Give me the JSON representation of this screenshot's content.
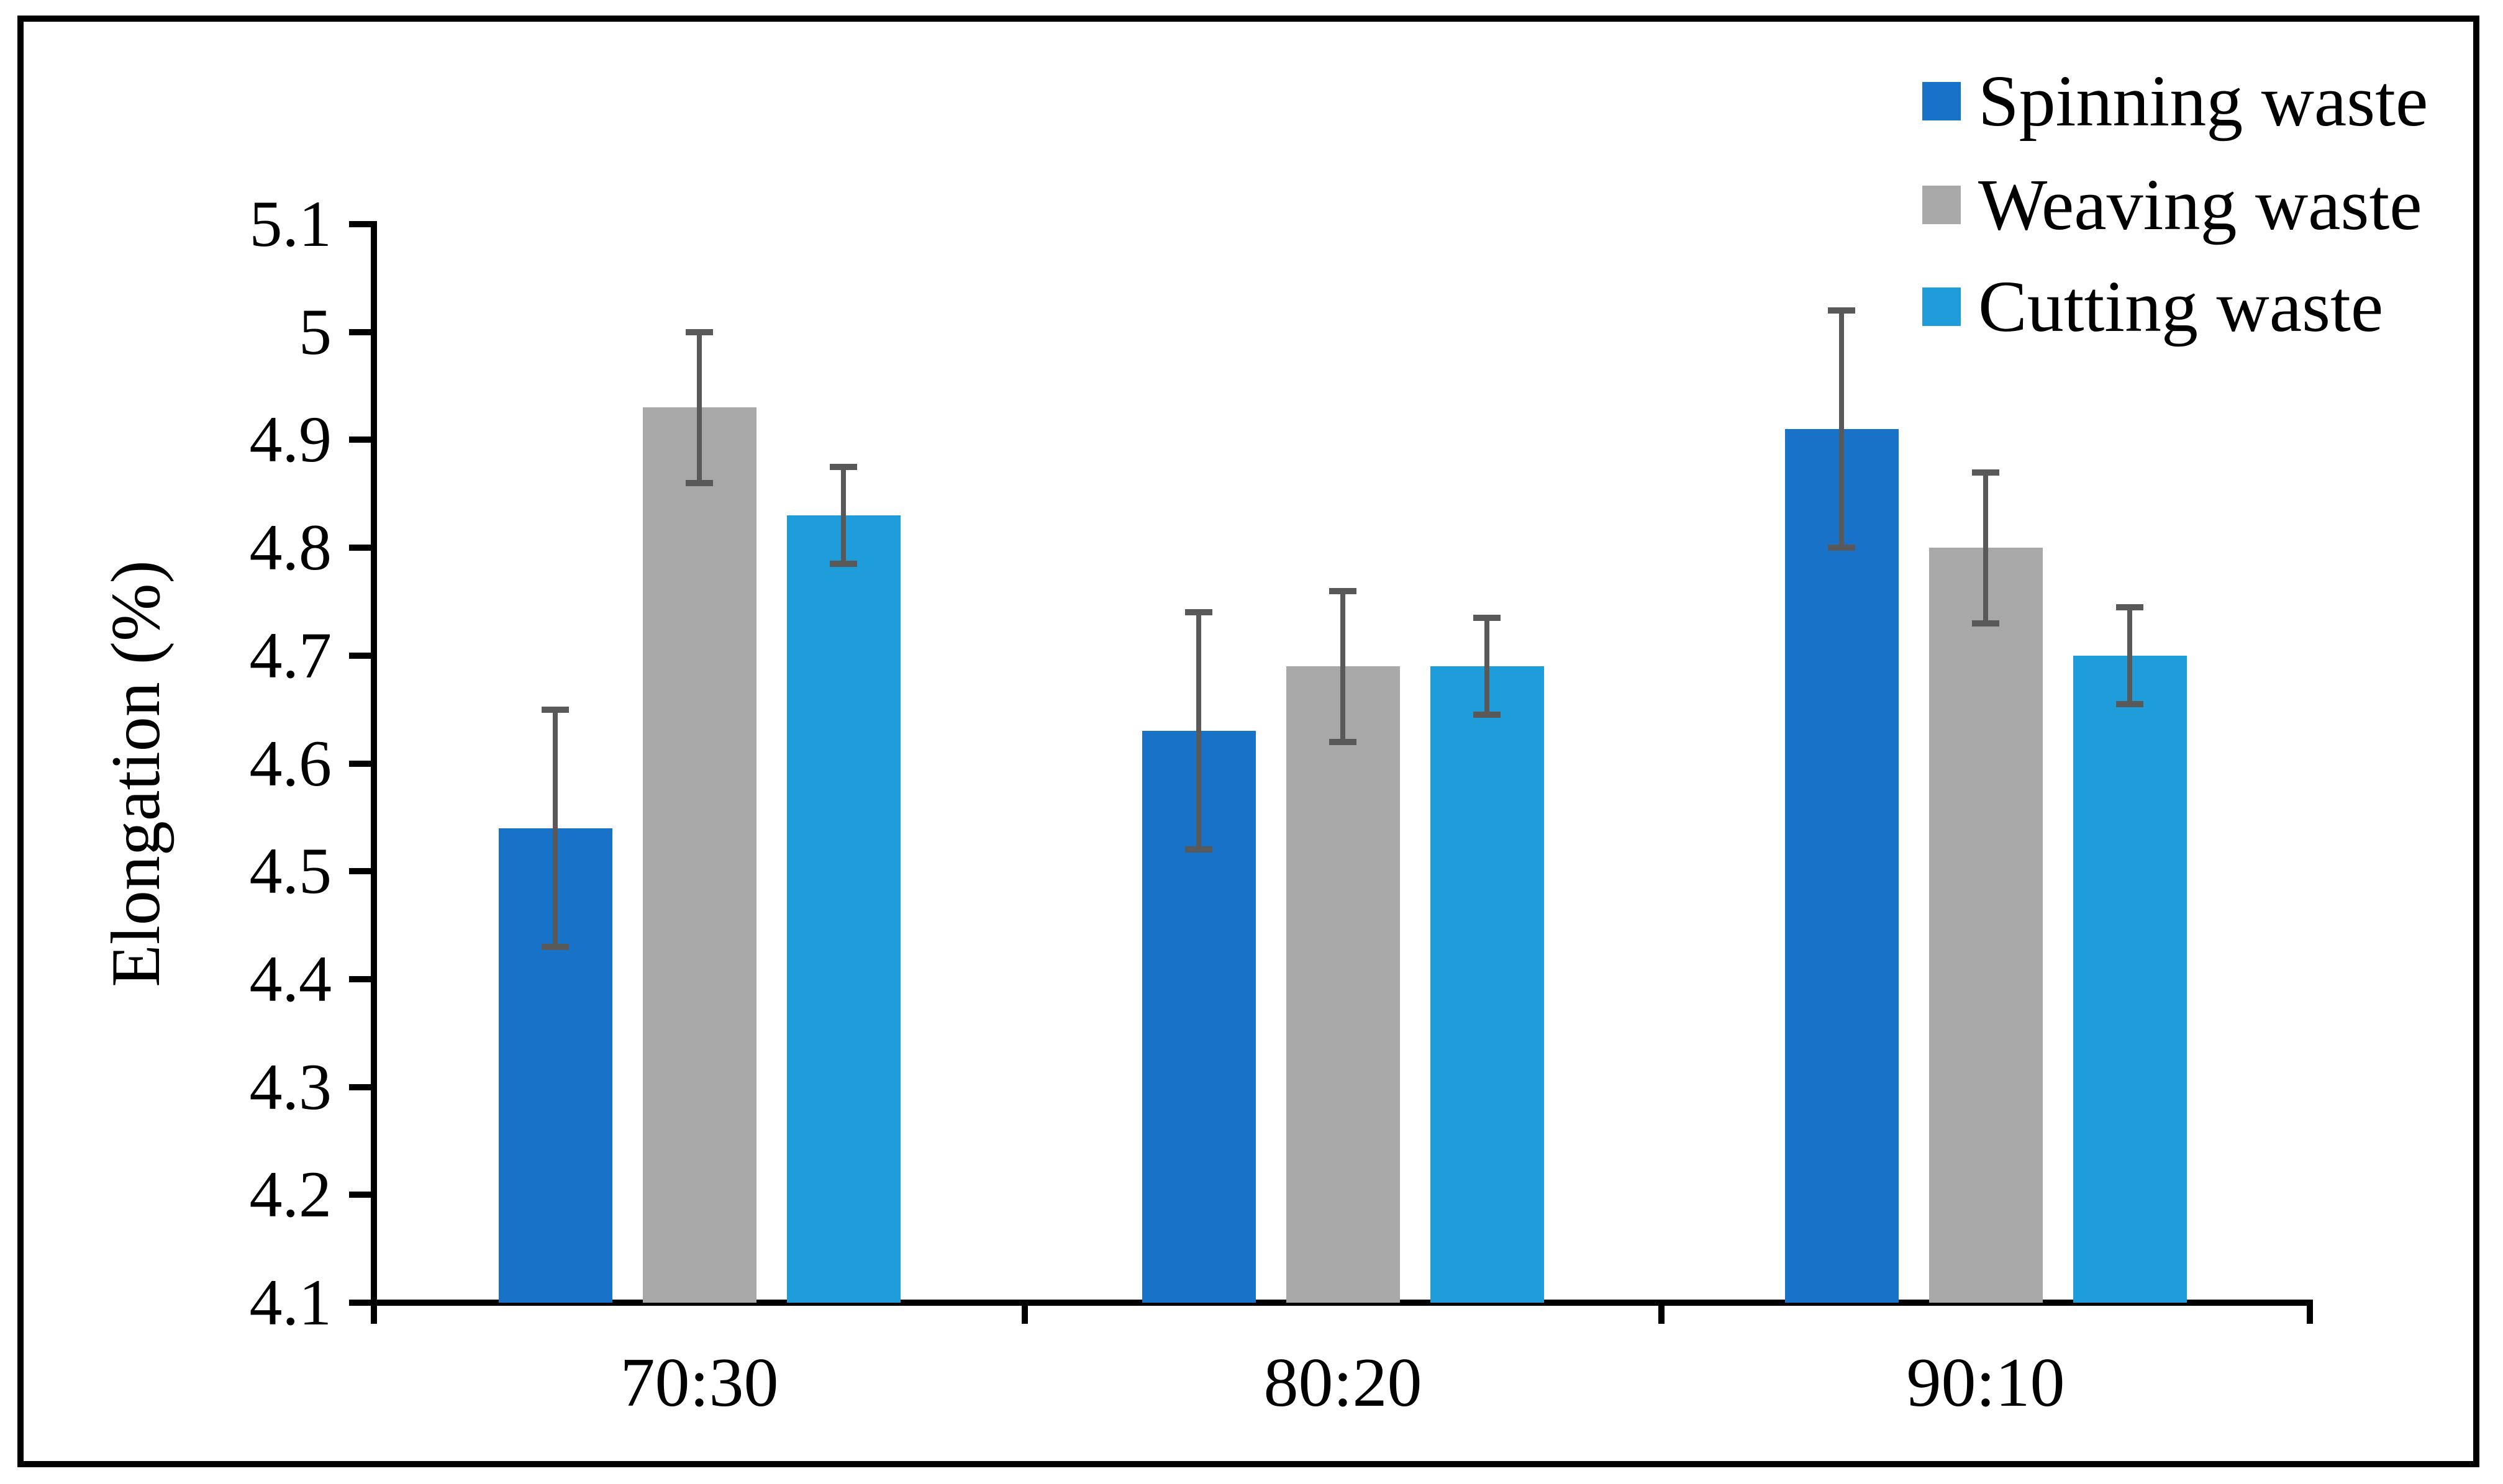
{
  "figure": {
    "y_axis": {
      "title": "Elongation (%)",
      "tick_labels": [
        "4.1",
        "4.2",
        "4.3",
        "4.4",
        "4.5",
        "4.6",
        "4.7",
        "4.8",
        "4.9",
        "5",
        "5.1"
      ]
    },
    "x_axis": {
      "category_labels": [
        "70:30",
        "80:20",
        "90:10"
      ]
    },
    "legend": {
      "items": [
        {
          "label": "Spinning waste",
          "color": "#1772C8"
        },
        {
          "label": "Weaving waste",
          "color": "#A8A8A8"
        },
        {
          "label": "Cutting waste",
          "color": "#1F9CDA"
        }
      ]
    }
  },
  "chart_data": {
    "type": "bar",
    "title": "",
    "xlabel": "",
    "ylabel": "Elongation (%)",
    "categories": [
      "70:30",
      "80:20",
      "90:10"
    ],
    "series": [
      {
        "name": "Spinning waste",
        "color": "#1772C8",
        "values": [
          4.54,
          4.63,
          4.91
        ],
        "errors": [
          0.11,
          0.11,
          0.11
        ]
      },
      {
        "name": "Weaving waste",
        "color": "#A8A8A8",
        "values": [
          4.93,
          4.69,
          4.8
        ],
        "errors": [
          0.07,
          0.07,
          0.07
        ]
      },
      {
        "name": "Cutting waste",
        "color": "#1F9CDA",
        "values": [
          4.83,
          4.69,
          4.7
        ],
        "errors": [
          0.045,
          0.045,
          0.045
        ]
      }
    ],
    "ylim": [
      4.1,
      5.1
    ],
    "ytick_step": 0.1,
    "grid": false,
    "legend_position": "top-right",
    "error_bar_color": "#595959"
  }
}
